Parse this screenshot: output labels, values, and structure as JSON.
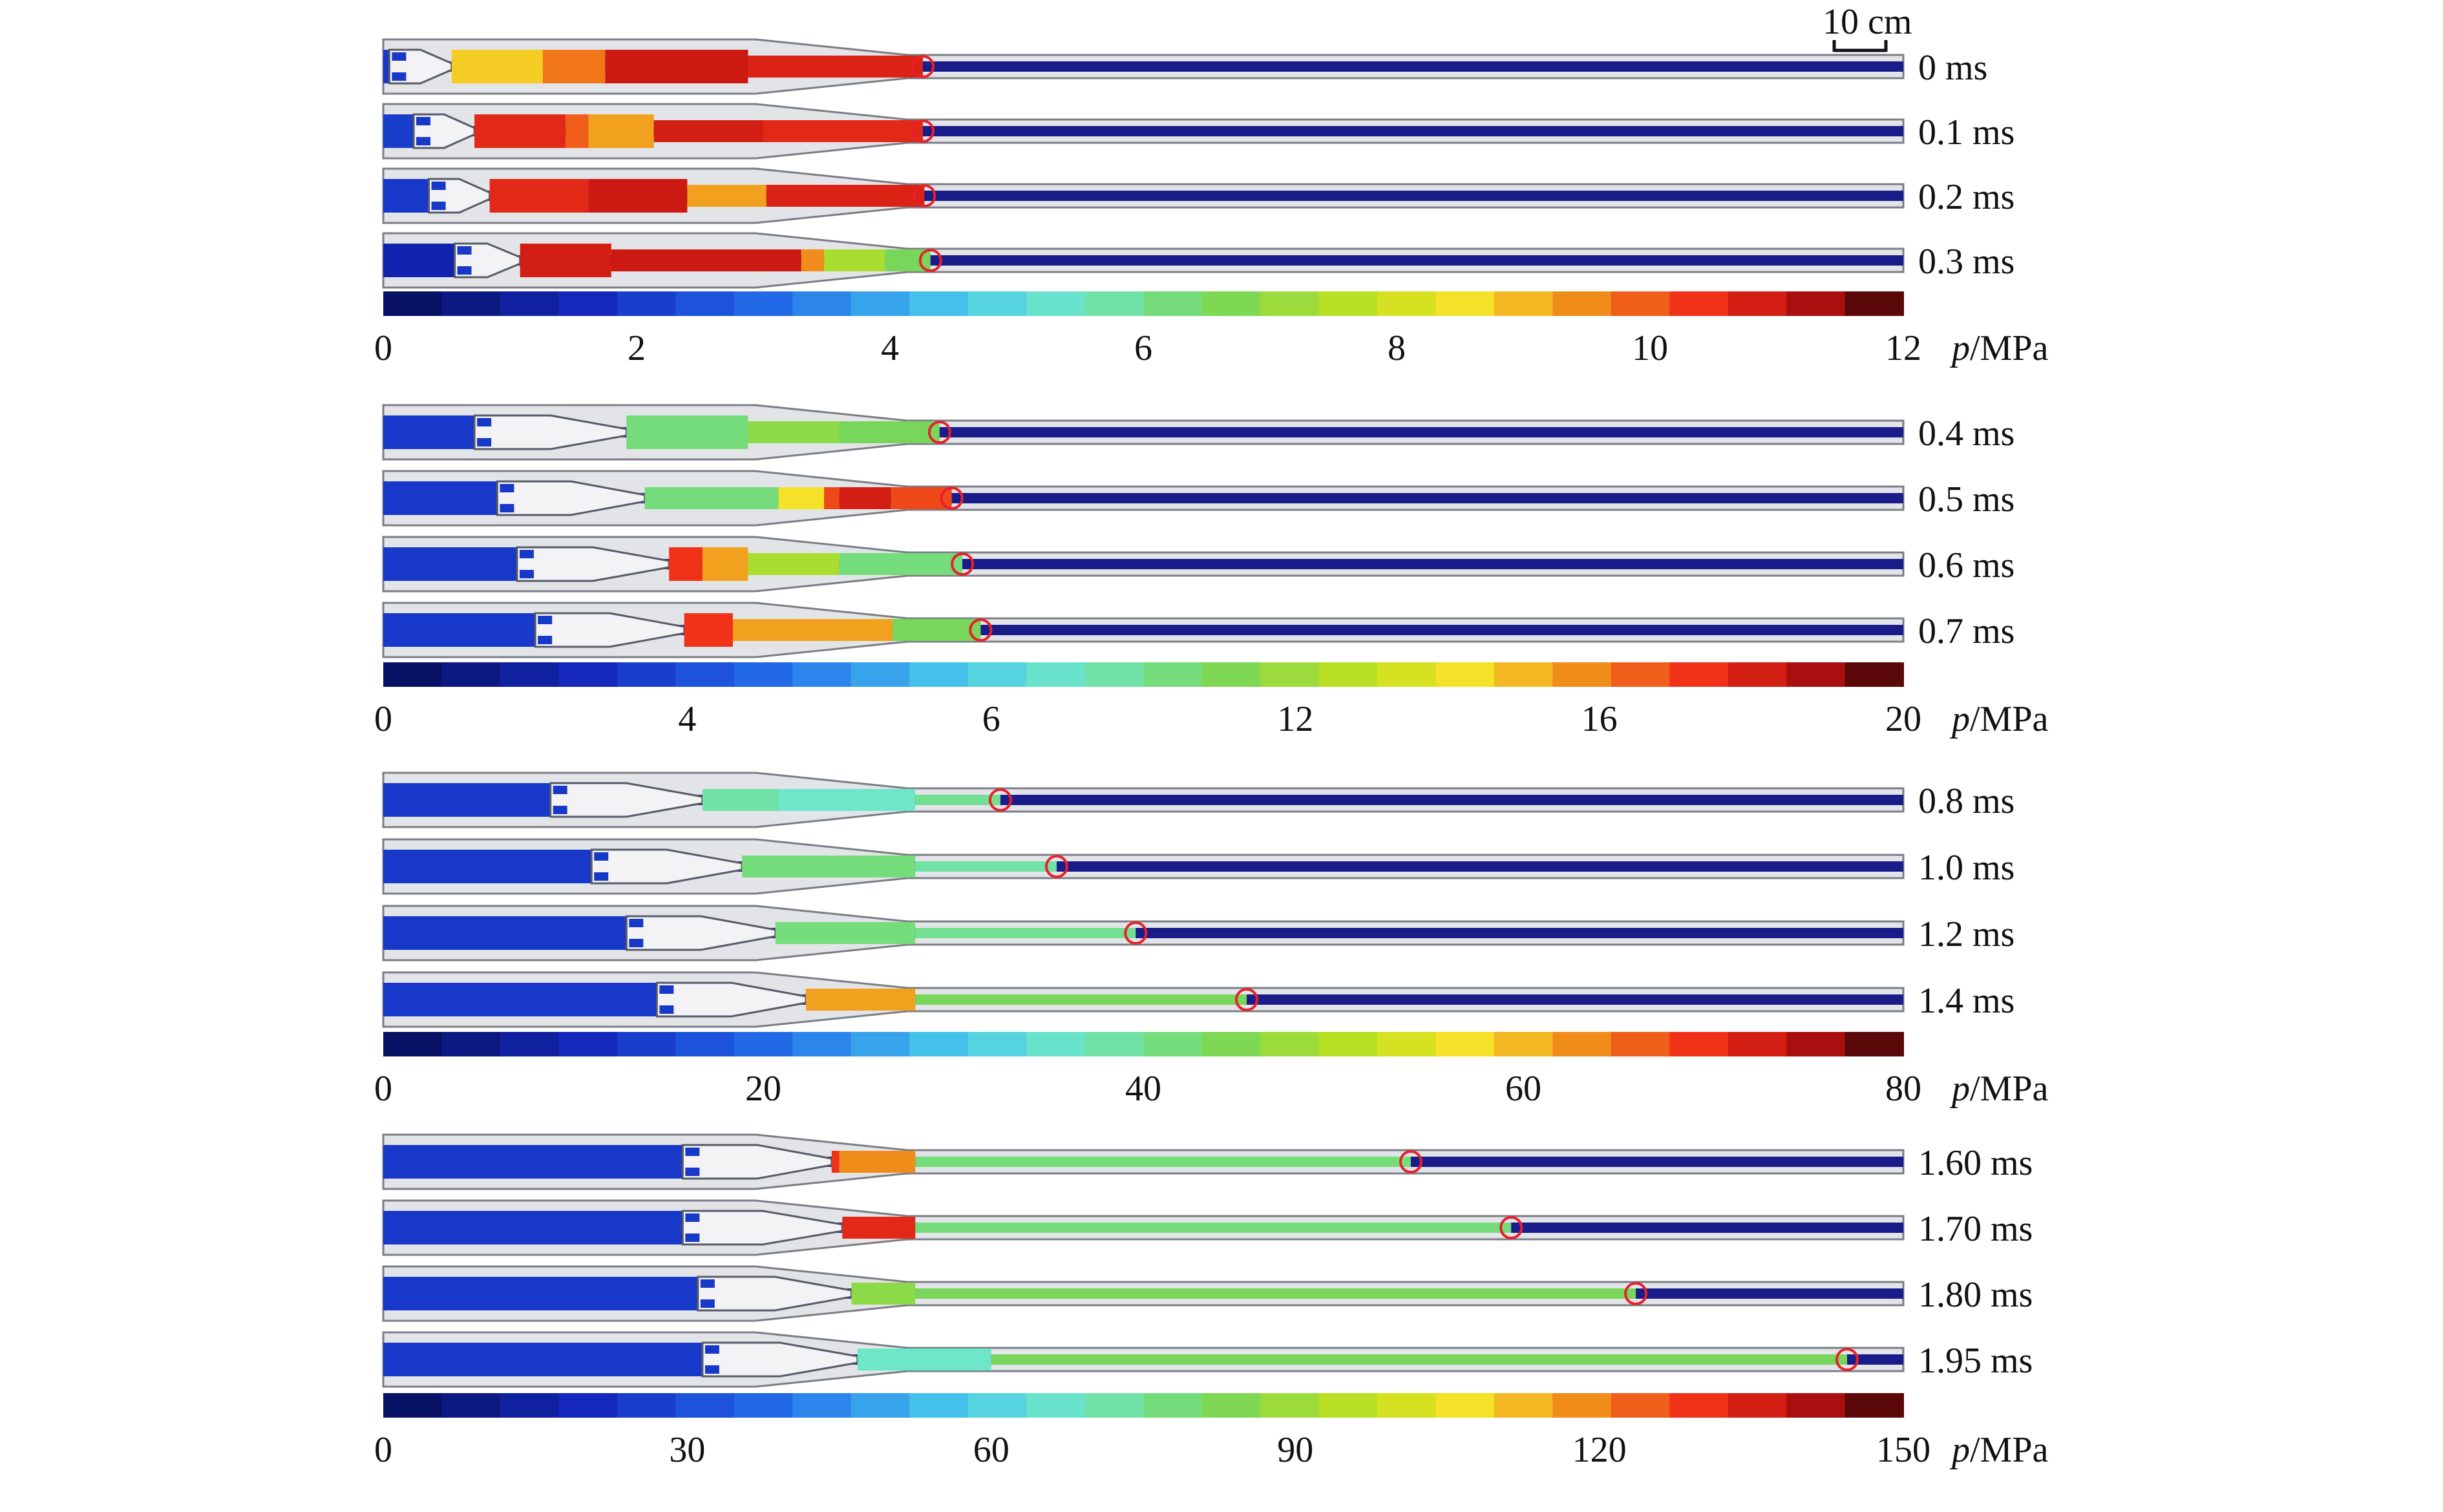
{
  "scale_bar": {
    "label": "10 cm"
  },
  "groups": [
    {
      "frames": [
        {
          "time": "0 ms",
          "circle_frac": 0.355,
          "front": [
            {
              "to": 0.004,
              "c": 0.15
            },
            {
              "to": 0.045,
              "c": "shape"
            },
            {
              "to": 0.105,
              "c": 0.74
            },
            {
              "to": 0.146,
              "c": 0.82
            },
            {
              "to": 0.24,
              "c": 0.93
            },
            {
              "to": 0.355,
              "c": 0.91
            }
          ]
        },
        {
          "time": "0.1 ms",
          "circle_frac": 0.355,
          "front": [
            {
              "to": 0.02,
              "c": 0.16
            },
            {
              "to": 0.06,
              "c": "shape"
            },
            {
              "to": 0.12,
              "c": 0.9
            },
            {
              "to": 0.135,
              "c": 0.84
            },
            {
              "to": 0.178,
              "c": 0.78
            },
            {
              "to": 0.25,
              "c": 0.92
            },
            {
              "to": 0.355,
              "c": 0.9
            }
          ]
        },
        {
          "time": "0.2 ms",
          "circle_frac": 0.356,
          "front": [
            {
              "to": 0.03,
              "c": 0.15
            },
            {
              "to": 0.07,
              "c": "shape"
            },
            {
              "to": 0.135,
              "c": 0.9
            },
            {
              "to": 0.2,
              "c": 0.93
            },
            {
              "to": 0.252,
              "c": 0.78
            },
            {
              "to": 0.356,
              "c": 0.91
            }
          ]
        },
        {
          "time": "0.3 ms",
          "circle_frac": 0.36,
          "front": [
            {
              "to": 0.047,
              "c": 0.1
            },
            {
              "to": 0.09,
              "c": "shape"
            },
            {
              "to": 0.15,
              "c": 0.92
            },
            {
              "to": 0.275,
              "c": 0.93
            },
            {
              "to": 0.29,
              "c": 0.8
            },
            {
              "to": 0.33,
              "c": 0.62
            },
            {
              "to": 0.36,
              "c": 0.55
            }
          ]
        }
      ],
      "colorbar": {
        "ticks": [
          "0",
          "2",
          "4",
          "6",
          "8",
          "10",
          "12"
        ],
        "unit_var": "p",
        "unit": "/MPa"
      }
    },
    {
      "frames": [
        {
          "time": "0.4 ms",
          "circle_frac": 0.366,
          "front": [
            {
              "to": 0.06,
              "c": 0.15
            },
            {
              "to": 0.16,
              "c": "shape"
            },
            {
              "to": 0.24,
              "c": 0.52
            },
            {
              "to": 0.3,
              "c": 0.58
            },
            {
              "to": 0.366,
              "c": 0.55
            }
          ]
        },
        {
          "time": "0.5 ms",
          "circle_frac": 0.374,
          "front": [
            {
              "to": 0.075,
              "c": 0.15
            },
            {
              "to": 0.172,
              "c": "shape"
            },
            {
              "to": 0.26,
              "c": 0.52
            },
            {
              "to": 0.29,
              "c": 0.72
            },
            {
              "to": 0.3,
              "c": 0.86
            },
            {
              "to": 0.334,
              "c": 0.92
            },
            {
              "to": 0.374,
              "c": 0.86
            }
          ]
        },
        {
          "time": "0.6 ms",
          "circle_frac": 0.381,
          "front": [
            {
              "to": 0.088,
              "c": 0.15
            },
            {
              "to": 0.188,
              "c": "shape"
            },
            {
              "to": 0.21,
              "c": 0.88
            },
            {
              "to": 0.24,
              "c": 0.78
            },
            {
              "to": 0.3,
              "c": 0.62
            },
            {
              "to": 0.381,
              "c": 0.52
            }
          ]
        },
        {
          "time": "0.7 ms",
          "circle_frac": 0.393,
          "front": [
            {
              "to": 0.1,
              "c": 0.15
            },
            {
              "to": 0.198,
              "c": "shape"
            },
            {
              "to": 0.23,
              "c": 0.88
            },
            {
              "to": 0.335,
              "c": 0.78
            },
            {
              "to": 0.393,
              "c": 0.55
            }
          ]
        }
      ],
      "colorbar": {
        "ticks": [
          "0",
          "4",
          "6",
          "12",
          "16",
          "20"
        ],
        "unit_var": "p",
        "unit": "/MPa"
      }
    },
    {
      "frames": [
        {
          "time": "0.8 ms",
          "circle_frac": 0.406,
          "front": [
            {
              "to": 0.11,
              "c": 0.15
            },
            {
              "to": 0.21,
              "c": "shape"
            },
            {
              "to": 0.26,
              "c": 0.48
            },
            {
              "to": 0.35,
              "c": 0.45
            },
            {
              "to": 0.406,
              "c": 0.5
            }
          ]
        },
        {
          "time": "1.0 ms",
          "circle_frac": 0.443,
          "front": [
            {
              "to": 0.137,
              "c": 0.15
            },
            {
              "to": 0.236,
              "c": "shape"
            },
            {
              "to": 0.35,
              "c": 0.52
            },
            {
              "to": 0.443,
              "c": 0.48
            }
          ]
        },
        {
          "time": "1.2 ms",
          "circle_frac": 0.495,
          "front": [
            {
              "to": 0.16,
              "c": 0.15
            },
            {
              "to": 0.258,
              "c": "shape"
            },
            {
              "to": 0.35,
              "c": 0.52
            },
            {
              "to": 0.495,
              "c": 0.5
            }
          ]
        },
        {
          "time": "1.4 ms",
          "circle_frac": 0.568,
          "front": [
            {
              "to": 0.18,
              "c": 0.15
            },
            {
              "to": 0.278,
              "c": "shape"
            },
            {
              "to": 0.35,
              "c": 0.78
            },
            {
              "to": 0.568,
              "c": 0.55
            }
          ]
        }
      ],
      "colorbar": {
        "ticks": [
          "0",
          "20",
          "40",
          "60",
          "80"
        ],
        "unit_var": "p",
        "unit": "/MPa"
      }
    },
    {
      "frames": [
        {
          "time": "1.60 ms",
          "circle_frac": 0.676,
          "front": [
            {
              "to": 0.197,
              "c": 0.15
            },
            {
              "to": 0.295,
              "c": "shape"
            },
            {
              "to": 0.3,
              "c": 0.88
            },
            {
              "to": 0.35,
              "c": 0.8
            },
            {
              "to": 0.676,
              "c": 0.52
            }
          ]
        },
        {
          "time": "1.70 ms",
          "circle_frac": 0.742,
          "front": [
            {
              "to": 0.197,
              "c": 0.15
            },
            {
              "to": 0.302,
              "c": "shape"
            },
            {
              "to": 0.35,
              "c": 0.9
            },
            {
              "to": 0.742,
              "c": 0.52
            }
          ]
        },
        {
          "time": "1.80 ms",
          "circle_frac": 0.824,
          "front": [
            {
              "to": 0.207,
              "c": 0.15
            },
            {
              "to": 0.308,
              "c": "shape"
            },
            {
              "to": 0.35,
              "c": 0.58
            },
            {
              "to": 0.824,
              "c": 0.55
            }
          ]
        },
        {
          "time": "1.95 ms",
          "circle_frac": 0.963,
          "front": [
            {
              "to": 0.21,
              "c": 0.15
            },
            {
              "to": 0.312,
              "c": "shape"
            },
            {
              "to": 0.4,
              "c": 0.45
            },
            {
              "to": 0.963,
              "c": 0.55
            }
          ]
        }
      ],
      "colorbar": {
        "ticks": [
          "0",
          "30",
          "60",
          "90",
          "120",
          "150"
        ],
        "unit_var": "p",
        "unit": "/MPa"
      }
    }
  ],
  "colors": {
    "housing": "#e3e4e8",
    "housing_edge": "#7b7d86",
    "undisturbed": "#1a1c8a",
    "projectile": "#f3f3f5",
    "marker": "#e8202a"
  }
}
